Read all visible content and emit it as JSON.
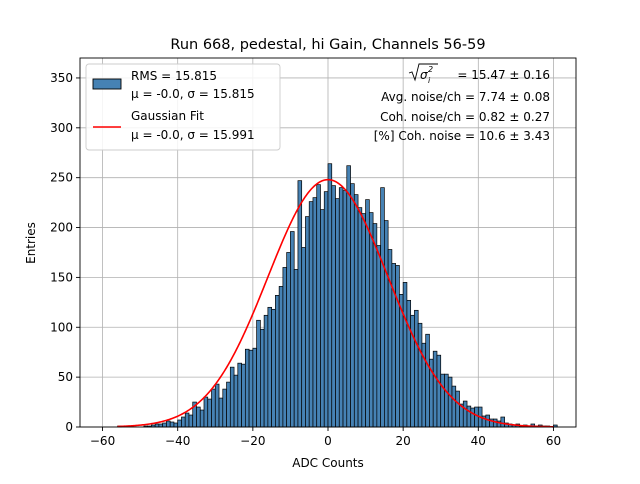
{
  "chart_data": {
    "type": "bar",
    "title": "Run 668, pedestal, hi Gain, Channels 56-59",
    "xlabel": "ADC Counts",
    "ylabel": "Entries",
    "xlim": [
      -66,
      66
    ],
    "ylim": [
      0,
      370
    ],
    "x_ticks": [
      -60,
      -40,
      -20,
      0,
      20,
      40,
      60
    ],
    "y_ticks": [
      0,
      50,
      100,
      150,
      200,
      250,
      300,
      350
    ],
    "grid": true,
    "legend_position": "upper-left",
    "bin_edges_start": -56,
    "bin_width": 1,
    "histogram_counts": [
      1,
      0,
      0,
      0,
      0,
      0,
      0,
      1,
      1,
      2,
      3,
      3,
      4,
      6,
      5,
      4,
      7,
      10,
      14,
      12,
      25,
      20,
      17,
      30,
      28,
      38,
      43,
      29,
      38,
      45,
      60,
      52,
      64,
      63,
      78,
      77,
      79,
      107,
      98,
      112,
      120,
      118,
      132,
      141,
      160,
      175,
      196,
      158,
      247,
      180,
      211,
      226,
      230,
      243,
      218,
      236,
      264,
      242,
      229,
      240,
      237,
      262,
      244,
      233,
      220,
      214,
      228,
      215,
      204,
      182,
      240,
      207,
      178,
      164,
      162,
      133,
      145,
      127,
      112,
      117,
      104,
      84,
      93,
      68,
      76,
      72,
      53,
      53,
      50,
      41,
      36,
      23,
      26,
      21,
      19,
      20,
      20,
      11,
      12,
      8,
      8,
      6,
      10,
      4,
      3,
      2,
      3,
      1,
      2,
      1,
      3,
      1,
      2,
      1,
      1,
      0,
      2,
      0
    ],
    "fit_curve": {
      "name": "Gaussian Fit",
      "mu": 0.0,
      "sigma": 15.991,
      "peak": 248,
      "x_range": [
        -56,
        60
      ],
      "color": "#ff0000"
    },
    "bar_color": "#4682b4",
    "bar_edge_color": "#000000",
    "legend": [
      {
        "line1": "RMS = 15.815",
        "line2": "μ = -0.0, σ = 15.815",
        "kind": "patch",
        "color": "#4682b4"
      },
      {
        "line1": "Gaussian Fit",
        "line2": "μ = -0.0, σ = 15.991",
        "kind": "line",
        "color": "#ff0000"
      }
    ],
    "annotations": [
      {
        "prefix": "√σ",
        "sub": "i",
        "sup": "2",
        "text": " = 15.47 ± 0.16"
      },
      {
        "text": "Avg. noise/ch = 7.74 ± 0.08"
      },
      {
        "text": "Coh. noise/ch = 0.82 ± 0.27"
      },
      {
        "text": "[%] Coh. noise = 10.6 ± 3.43"
      }
    ]
  }
}
